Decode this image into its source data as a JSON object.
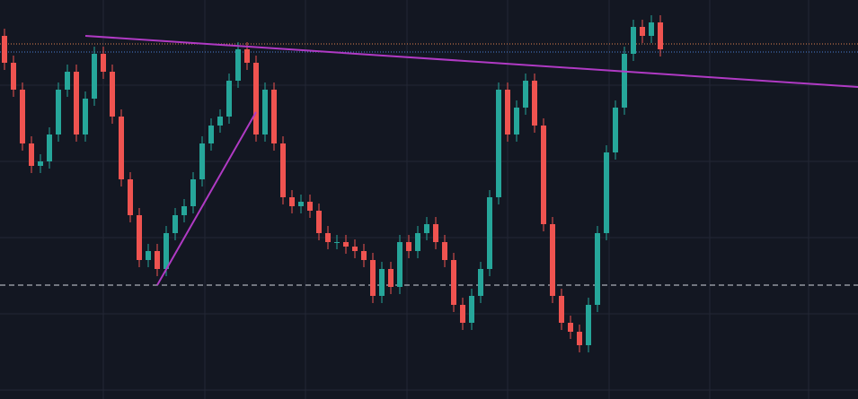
{
  "chart_data": {
    "type": "candlestick",
    "up_color": "#26a69a",
    "down_color": "#ef5350",
    "xlim": [
      -0.5,
      95
    ],
    "ylim": [
      0,
      445
    ],
    "categories": [
      null,
      null,
      null,
      null,
      null,
      null,
      null,
      null,
      null,
      null,
      null,
      null,
      null,
      null,
      null,
      null,
      null,
      null,
      null,
      null,
      null,
      null,
      null,
      null,
      null,
      null,
      null,
      null,
      null,
      null,
      null,
      null,
      null,
      null,
      null,
      null,
      null,
      null,
      null,
      null,
      null,
      null,
      null,
      null,
      null,
      null,
      null,
      null,
      null,
      null,
      null,
      null,
      null,
      null,
      null,
      null,
      null,
      null,
      null,
      null,
      null,
      null,
      null,
      null,
      null,
      null,
      null,
      null,
      null,
      null,
      null,
      null,
      null,
      null
    ],
    "open": [
      405,
      375,
      345,
      285,
      260,
      265,
      295,
      345,
      365,
      295,
      335,
      385,
      365,
      315,
      245,
      205,
      155,
      165,
      145,
      185,
      205,
      215,
      245,
      285,
      305,
      315,
      355,
      390,
      375,
      295,
      345,
      285,
      225,
      215,
      220,
      210,
      185,
      175,
      175,
      170,
      165,
      155,
      115,
      145,
      125,
      175,
      165,
      185,
      195,
      175,
      155,
      105,
      85,
      115,
      145,
      225,
      345,
      295,
      325,
      355,
      305,
      195,
      115,
      85,
      75,
      60,
      105,
      185,
      275,
      325,
      385,
      415,
      405,
      420
    ],
    "high": [
      413,
      383,
      353,
      293,
      273,
      303,
      353,
      373,
      373,
      343,
      393,
      393,
      373,
      323,
      253,
      213,
      173,
      173,
      193,
      213,
      223,
      253,
      293,
      313,
      323,
      363,
      398,
      398,
      383,
      353,
      353,
      293,
      233,
      228,
      228,
      218,
      193,
      183,
      183,
      178,
      173,
      163,
      153,
      153,
      183,
      183,
      193,
      203,
      203,
      183,
      163,
      113,
      123,
      153,
      233,
      353,
      353,
      333,
      363,
      363,
      313,
      203,
      123,
      93,
      83,
      113,
      193,
      283,
      333,
      393,
      423,
      423,
      428,
      428
    ],
    "low": [
      367,
      337,
      277,
      252,
      252,
      257,
      287,
      337,
      287,
      287,
      327,
      357,
      307,
      237,
      197,
      147,
      147,
      137,
      137,
      177,
      197,
      207,
      237,
      277,
      297,
      307,
      347,
      367,
      287,
      287,
      277,
      217,
      207,
      207,
      202,
      177,
      167,
      167,
      162,
      157,
      147,
      107,
      107,
      117,
      117,
      157,
      157,
      177,
      167,
      147,
      97,
      77,
      77,
      107,
      137,
      217,
      287,
      287,
      317,
      297,
      187,
      107,
      77,
      67,
      52,
      52,
      97,
      177,
      267,
      317,
      377,
      397,
      397,
      382
    ],
    "close": [
      375,
      345,
      285,
      260,
      265,
      295,
      345,
      365,
      295,
      335,
      385,
      365,
      315,
      245,
      205,
      155,
      165,
      145,
      185,
      205,
      215,
      245,
      285,
      305,
      315,
      355,
      390,
      375,
      295,
      345,
      285,
      225,
      215,
      220,
      210,
      185,
      175,
      175,
      170,
      165,
      155,
      115,
      145,
      125,
      175,
      165,
      185,
      195,
      175,
      155,
      105,
      85,
      115,
      145,
      225,
      345,
      295,
      325,
      355,
      305,
      195,
      115,
      85,
      75,
      60,
      105,
      185,
      275,
      325,
      385,
      415,
      405,
      420,
      390
    ],
    "trendlines": [
      {
        "color": "#b03ac4",
        "x": [
          9,
          95
        ],
        "values": [
          405,
          348
        ]
      },
      {
        "color": "#b03ac4",
        "x": [
          17,
          28
        ],
        "values": [
          127,
          320
        ]
      }
    ],
    "hlines": [
      {
        "value": 127,
        "color": "#d1d4dc",
        "style": "dashed"
      },
      {
        "value": 396,
        "color": "#e0824f",
        "style": "dotted"
      },
      {
        "value": 387,
        "color": "#4a7fd6",
        "style": "dotted"
      }
    ]
  }
}
